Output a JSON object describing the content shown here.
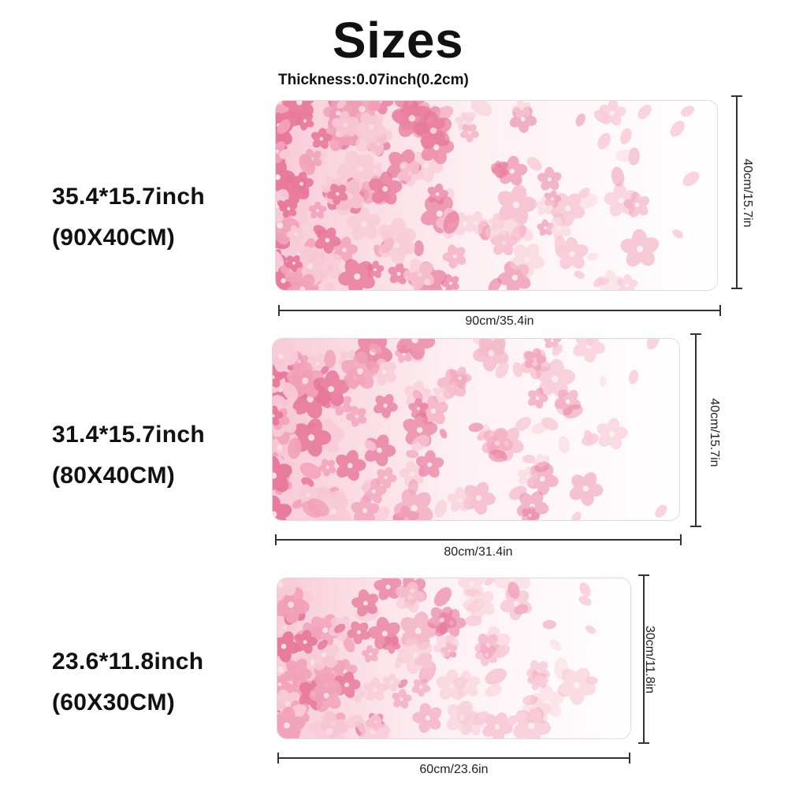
{
  "title": "Sizes",
  "thickness": "Thickness:0.07inch(0.2cm)",
  "colors": {
    "petal_dark": "#e8789a",
    "petal_mid": "#f2a3bb",
    "petal_light": "#f8cbd8",
    "background_fade": "#fdf0f4"
  },
  "products": [
    {
      "label_inch": "35.4*15.7inch",
      "label_cm": "(90X40CM)",
      "width_dim": "90cm/35.4in",
      "height_dim": "40cm/15.7in"
    },
    {
      "label_inch": "31.4*15.7inch",
      "label_cm": "(80X40CM)",
      "width_dim": "80cm/31.4in",
      "height_dim": "40cm/15.7in"
    },
    {
      "label_inch": "23.6*11.8inch",
      "label_cm": "(60X30CM)",
      "width_dim": "60cm/23.6in",
      "height_dim": "30cm/11.8in"
    }
  ]
}
